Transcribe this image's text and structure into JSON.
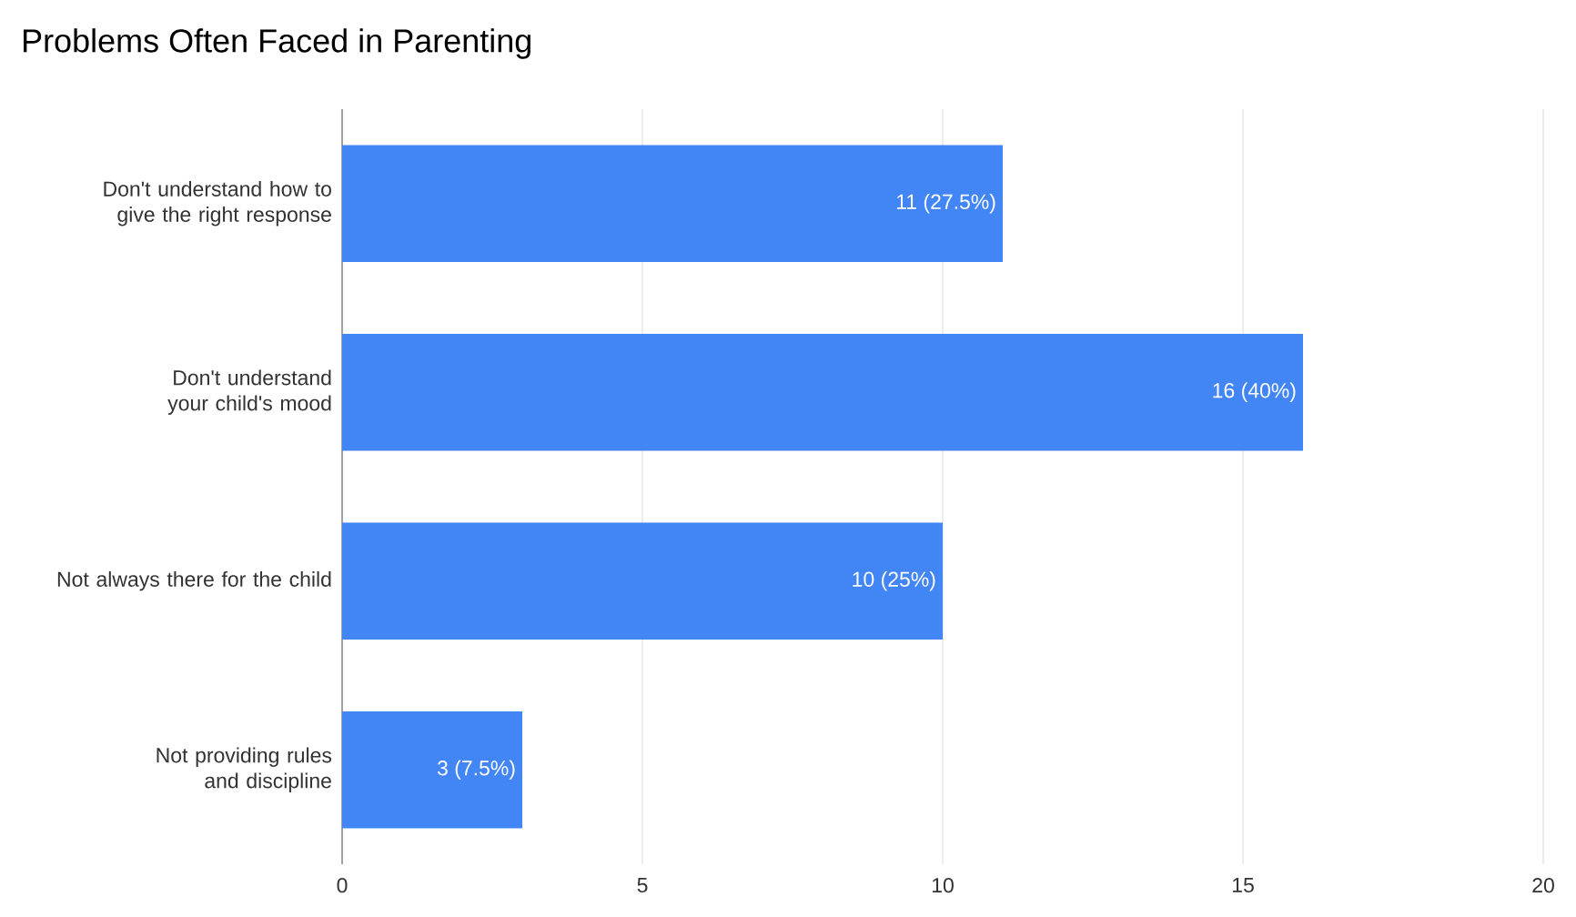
{
  "chart_data": {
    "type": "bar",
    "orientation": "horizontal",
    "title": "Problems Often Faced in Parenting",
    "categories": [
      "Don't understand how to give the right response",
      "Don't understand your child's mood",
      "Not always there for the child",
      "Not providing rules and discipline"
    ],
    "values": [
      11,
      16,
      10,
      3
    ],
    "value_labels": [
      "11 (27.5%)",
      "16 (40%)",
      "10 (25%)",
      "3 (7.5%)"
    ],
    "color": "#4285f4",
    "xlim": [
      0,
      20
    ],
    "xticks": [
      0,
      5,
      10,
      15,
      20
    ],
    "grid": "x"
  }
}
